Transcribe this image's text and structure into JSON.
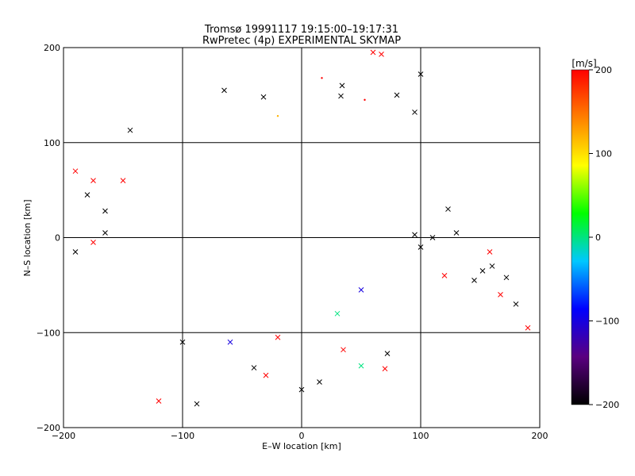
{
  "chart_data": {
    "type": "scatter",
    "title": "Tromsø 19991117 19:15:00–19:17:31",
    "subtitle": "RwPretec (4p) EXPERIMENTAL SKYMAP",
    "xlabel": "E–W location [km]",
    "ylabel": "N–S location [km]",
    "xlim": [
      -200,
      200
    ],
    "ylim": [
      -200,
      200
    ],
    "x_ticks": [
      -200,
      -100,
      0,
      100,
      200
    ],
    "y_ticks": [
      -200,
      -100,
      0,
      100,
      200
    ],
    "x_tick_labels": [
      "−200",
      "−100",
      "0",
      "100",
      "200"
    ],
    "y_tick_labels": [
      "−200",
      "−100",
      "0",
      "100",
      "200"
    ],
    "grid": true,
    "markers": [
      "x",
      "dot"
    ],
    "colorbar": {
      "label": "[m/s]",
      "range": [
        -200,
        200
      ],
      "ticks": [
        200,
        100,
        0,
        -100,
        -200
      ],
      "tick_labels": [
        "200",
        "100",
        "0",
        "−100",
        "−200"
      ],
      "colors": [
        "#000000",
        "#5a0080",
        "#0000ff",
        "#00c8ff",
        "#00ff00",
        "#ffff00",
        "#ff8000",
        "#ff0000"
      ]
    },
    "points": [
      {
        "x": 60,
        "y": 195,
        "v": 200,
        "m": "x"
      },
      {
        "x": 67,
        "y": 193,
        "v": 200,
        "m": "x"
      },
      {
        "x": 100,
        "y": 172,
        "v": -200,
        "m": "x"
      },
      {
        "x": 34,
        "y": 160,
        "v": -200,
        "m": "x"
      },
      {
        "x": 33,
        "y": 149,
        "v": -200,
        "m": "x"
      },
      {
        "x": -65,
        "y": 155,
        "v": -200,
        "m": "x"
      },
      {
        "x": -32,
        "y": 148,
        "v": -200,
        "m": "x"
      },
      {
        "x": -144,
        "y": 113,
        "v": -200,
        "m": "x"
      },
      {
        "x": 95,
        "y": 132,
        "v": -200,
        "m": "x"
      },
      {
        "x": 80,
        "y": 150,
        "v": -200,
        "m": "x"
      },
      {
        "x": -20,
        "y": 128,
        "v": 120,
        "m": "dot"
      },
      {
        "x": 53,
        "y": 145,
        "v": 200,
        "m": "dot"
      },
      {
        "x": 17,
        "y": 168,
        "v": 200,
        "m": "dot"
      },
      {
        "x": 123,
        "y": 30,
        "v": -200,
        "m": "x"
      },
      {
        "x": 130,
        "y": 5,
        "v": -200,
        "m": "x"
      },
      {
        "x": 152,
        "y": -35,
        "v": -200,
        "m": "x"
      },
      {
        "x": 160,
        "y": -30,
        "v": -200,
        "m": "x"
      },
      {
        "x": 167,
        "y": -60,
        "v": 200,
        "m": "x"
      },
      {
        "x": 180,
        "y": -70,
        "v": -200,
        "m": "x"
      },
      {
        "x": 172,
        "y": -42,
        "v": -200,
        "m": "x"
      },
      {
        "x": 190,
        "y": -95,
        "v": 200,
        "m": "x"
      },
      {
        "x": 158,
        "y": -15,
        "v": 200,
        "m": "x"
      },
      {
        "x": 145,
        "y": -45,
        "v": -200,
        "m": "x"
      },
      {
        "x": 120,
        "y": -40,
        "v": 200,
        "m": "x"
      },
      {
        "x": 95,
        "y": 3,
        "v": -200,
        "m": "x"
      },
      {
        "x": 110,
        "y": 0,
        "v": -200,
        "m": "x"
      },
      {
        "x": 100,
        "y": -10,
        "v": -200,
        "m": "x"
      },
      {
        "x": -100,
        "y": -110,
        "v": -200,
        "m": "x"
      },
      {
        "x": -120,
        "y": -172,
        "v": 200,
        "m": "x"
      },
      {
        "x": -88,
        "y": -175,
        "v": -200,
        "m": "x"
      },
      {
        "x": -30,
        "y": -145,
        "v": 200,
        "m": "x"
      },
      {
        "x": -40,
        "y": -137,
        "v": -200,
        "m": "x"
      },
      {
        "x": -20,
        "y": -105,
        "v": 200,
        "m": "x"
      },
      {
        "x": 0,
        "y": -160,
        "v": -200,
        "m": "x"
      },
      {
        "x": 15,
        "y": -152,
        "v": -200,
        "m": "x"
      },
      {
        "x": 70,
        "y": -138,
        "v": 200,
        "m": "x"
      },
      {
        "x": 72,
        "y": -122,
        "v": -200,
        "m": "x"
      },
      {
        "x": 50,
        "y": -135,
        "v": 0,
        "m": "x"
      },
      {
        "x": 35,
        "y": -118,
        "v": 200,
        "m": "x"
      },
      {
        "x": -60,
        "y": -110,
        "v": -100,
        "m": "x"
      },
      {
        "x": -190,
        "y": 70,
        "v": 200,
        "m": "x"
      },
      {
        "x": -180,
        "y": 45,
        "v": -200,
        "m": "x"
      },
      {
        "x": -165,
        "y": 28,
        "v": -200,
        "m": "x"
      },
      {
        "x": -175,
        "y": 60,
        "v": 200,
        "m": "x"
      },
      {
        "x": -190,
        "y": -15,
        "v": -200,
        "m": "x"
      },
      {
        "x": -165,
        "y": 5,
        "v": -200,
        "m": "x"
      },
      {
        "x": -150,
        "y": 60,
        "v": 200,
        "m": "x"
      },
      {
        "x": -175,
        "y": -5,
        "v": 200,
        "m": "x"
      },
      {
        "x": 50,
        "y": -55,
        "v": -100,
        "m": "x"
      },
      {
        "x": 30,
        "y": -80,
        "v": 0,
        "m": "x"
      }
    ]
  }
}
